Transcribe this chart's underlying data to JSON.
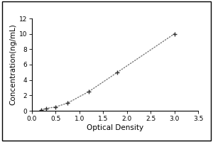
{
  "x_data": [
    0.188,
    0.3,
    0.5,
    0.75,
    1.2,
    1.8,
    3.0
  ],
  "y_data": [
    0.1,
    0.3,
    0.5,
    1.0,
    2.5,
    5.0,
    10.0
  ],
  "xlabel": "Optical Density",
  "ylabel": "Concentration(ng/mL)",
  "xlim": [
    0,
    3.5
  ],
  "ylim": [
    0,
    12
  ],
  "xticks": [
    0,
    0.5,
    1.0,
    1.5,
    2.0,
    2.5,
    3.0,
    3.5
  ],
  "yticks": [
    0,
    2,
    4,
    6,
    8,
    10,
    12
  ],
  "line_color": "#777777",
  "marker_color": "#333333",
  "background_color": "#ffffff",
  "outer_border_color": "#000000",
  "xlabel_fontsize": 7.5,
  "ylabel_fontsize": 7.5,
  "tick_fontsize": 6.5,
  "figsize": [
    3.0,
    2.0
  ],
  "dpi": 100
}
